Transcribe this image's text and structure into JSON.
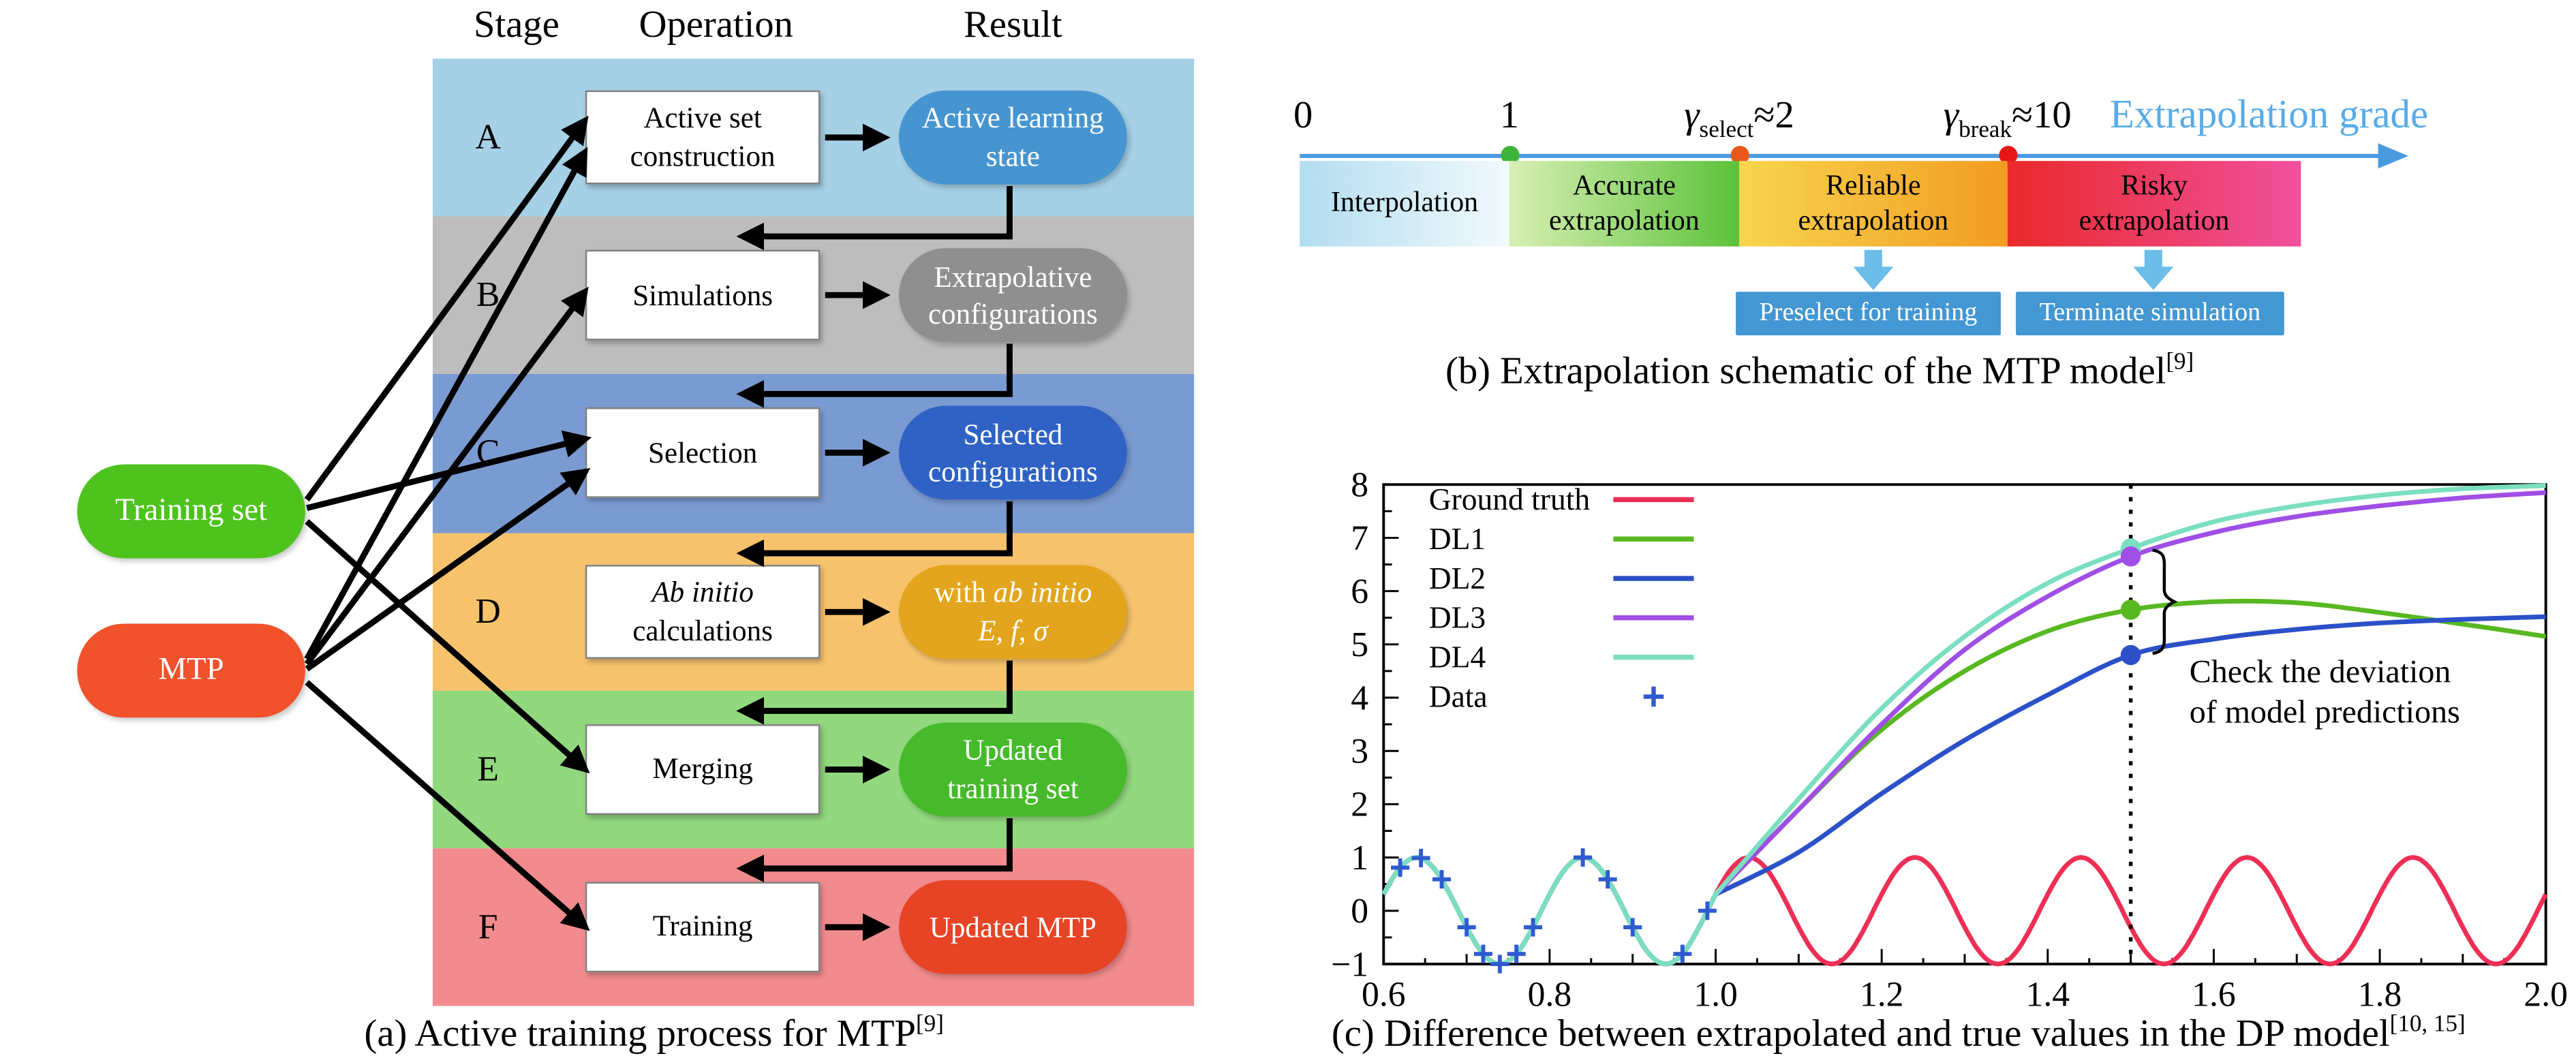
{
  "page": {
    "background": "#ffffff"
  },
  "panel_a": {
    "headers": {
      "stage": "Stage",
      "operation": "Operation",
      "result": "Result"
    },
    "left_nodes": [
      {
        "label": "Training set",
        "color": "#4ec31d"
      },
      {
        "label": "MTP",
        "color": "#f1512b"
      }
    ],
    "stages": [
      {
        "stage": "A",
        "band_color": "#a5d0e6",
        "op_lines": [
          [
            {
              "t": "Active set"
            }
          ],
          [
            {
              "t": "construction"
            }
          ]
        ],
        "res_lines": [
          [
            {
              "t": "Active learning"
            }
          ],
          [
            {
              "t": "state"
            }
          ]
        ],
        "result_color": "#4795d0"
      },
      {
        "stage": "B",
        "band_color": "#bdbdbd",
        "op_lines": [
          [
            {
              "t": "Simulations"
            }
          ]
        ],
        "res_lines": [
          [
            {
              "t": "Extrapolative"
            }
          ],
          [
            {
              "t": "configurations"
            }
          ]
        ],
        "result_color": "#8f8f8f"
      },
      {
        "stage": "C",
        "band_color": "#7a9bd2",
        "op_lines": [
          [
            {
              "t": "Selection"
            }
          ]
        ],
        "res_lines": [
          [
            {
              "t": "Selected"
            }
          ],
          [
            {
              "t": "configurations"
            }
          ]
        ],
        "result_color": "#2f62c4"
      },
      {
        "stage": "D",
        "band_color": "#f6c36c",
        "op_lines": [
          [
            {
              "t": "Ab initio",
              "i": true
            }
          ],
          [
            {
              "t": "calculations"
            }
          ]
        ],
        "res_lines": [
          [
            {
              "t": "with "
            },
            {
              "t": "ab initio",
              "i": true
            }
          ],
          [
            {
              "t": "E, f, σ",
              "i": true
            }
          ]
        ],
        "result_color": "#e2a51d"
      },
      {
        "stage": "E",
        "band_color": "#92d87e",
        "op_lines": [
          [
            {
              "t": "Merging"
            }
          ]
        ],
        "res_lines": [
          [
            {
              "t": "Updated"
            }
          ],
          [
            {
              "t": "training set"
            }
          ]
        ],
        "result_color": "#46ba2b"
      },
      {
        "stage": "F",
        "band_color": "#f28b8e",
        "op_lines": [
          [
            {
              "t": "Training"
            }
          ]
        ],
        "res_lines": [
          [
            {
              "t": "Updated MTP"
            }
          ]
        ],
        "result_color": "#e74425"
      }
    ],
    "caption_runs": [
      {
        "t": "(a) Active training process for MTP"
      },
      {
        "t": "[9]",
        "sup": true
      }
    ]
  },
  "panel_b": {
    "axis_label": "Extrapolation grade",
    "axis_color": "#4a9ae0",
    "label_color": "#58abe8",
    "ticks": [
      {
        "runs": [
          {
            "t": "0"
          }
        ]
      },
      {
        "runs": [
          {
            "t": "1"
          }
        ]
      },
      {
        "runs": [
          {
            "t": "γ",
            "i": true
          },
          {
            "t": "select",
            "sub": true
          },
          {
            "t": "≈2"
          }
        ]
      },
      {
        "runs": [
          {
            "t": "γ",
            "i": true
          },
          {
            "t": "break",
            "sub": true
          },
          {
            "t": "≈10"
          }
        ]
      }
    ],
    "dots": [
      {
        "color": "#3cb43c"
      },
      {
        "color": "#e8581a"
      },
      {
        "color": "#e81717"
      }
    ],
    "segments": [
      {
        "lines": [
          "Interpolation"
        ],
        "from": "#b2ddf0",
        "to": "#f2fafd"
      },
      {
        "lines": [
          "Accurate",
          "extrapolation"
        ],
        "from": "#d8efb4",
        "to": "#5cc23a"
      },
      {
        "lines": [
          "Reliable",
          "extrapolation"
        ],
        "from": "#f8d54e",
        "to": "#f19c21"
      },
      {
        "lines": [
          "Risky",
          "extrapolation"
        ],
        "from": "#e92a2a",
        "to": "#f0509e"
      }
    ],
    "arrow_color": "#6cbde8",
    "actions": [
      {
        "label": "Preselect for training",
        "color": "#4397d2"
      },
      {
        "label": "Terminate simulation",
        "color": "#4397d2"
      }
    ],
    "caption_runs": [
      {
        "t": "(b) Extrapolation schematic of the MTP model"
      },
      {
        "t": "[9]",
        "sup": true
      }
    ]
  },
  "chart_data": {
    "type": "line",
    "title": "",
    "xlabel": "",
    "ylabel": "",
    "xlim": [
      0.6,
      2.0
    ],
    "ylim": [
      -1,
      8
    ],
    "xticks": [
      0.6,
      0.8,
      1.0,
      1.2,
      1.4,
      1.6,
      1.8,
      2.0
    ],
    "yticks": [
      -1,
      0,
      1,
      2,
      3,
      4,
      5,
      6,
      7,
      8
    ],
    "grid": false,
    "legend_position": "upper left",
    "ground_truth": {
      "name": "Ground truth",
      "color": "#ee2f55",
      "shape": "cosine",
      "amplitude": 1,
      "period": 0.2,
      "peak_x": 0.64,
      "x_range": [
        0.6,
        2.0
      ]
    },
    "series": [
      {
        "name": "DL1",
        "color": "#58b822",
        "follow_truth_until": 1.0,
        "x": [
          1.0,
          1.1,
          1.2,
          1.3,
          1.4,
          1.5,
          1.6,
          1.7,
          1.8,
          1.9,
          2.0
        ],
        "y": [
          0.31,
          1.9,
          3.4,
          4.5,
          5.25,
          5.65,
          5.8,
          5.78,
          5.6,
          5.38,
          5.15
        ]
      },
      {
        "name": "DL2",
        "color": "#2b50c8",
        "follow_truth_until": 1.0,
        "x": [
          1.0,
          1.1,
          1.2,
          1.3,
          1.4,
          1.5,
          1.6,
          1.7,
          1.8,
          1.9,
          2.0
        ],
        "y": [
          0.31,
          1.1,
          2.2,
          3.2,
          4.05,
          4.8,
          5.1,
          5.28,
          5.4,
          5.47,
          5.52
        ]
      },
      {
        "name": "DL3",
        "color": "#a04fe6",
        "follow_truth_until": 1.0,
        "x": [
          1.0,
          1.1,
          1.2,
          1.3,
          1.4,
          1.5,
          1.6,
          1.7,
          1.8,
          1.9,
          2.0
        ],
        "y": [
          0.31,
          1.9,
          3.5,
          4.9,
          5.9,
          6.65,
          7.1,
          7.4,
          7.6,
          7.75,
          7.85
        ]
      },
      {
        "name": "DL4",
        "color": "#7adfc0",
        "follow_truth_until": 1.0,
        "x": [
          1.0,
          1.1,
          1.2,
          1.3,
          1.4,
          1.5,
          1.6,
          1.7,
          1.8,
          1.9,
          2.0
        ],
        "y": [
          0.31,
          2.1,
          3.8,
          5.15,
          6.15,
          6.8,
          7.3,
          7.6,
          7.8,
          7.92,
          7.98
        ]
      }
    ],
    "data_points": {
      "name": "Data",
      "color": "#2f5ad0",
      "marker": "+",
      "x": [
        0.62,
        0.645,
        0.67,
        0.7,
        0.72,
        0.74,
        0.76,
        0.78,
        0.84,
        0.87,
        0.9,
        0.96,
        0.99
      ],
      "y": [
        0.81,
        0.99,
        0.59,
        -0.31,
        -0.81,
        -1.0,
        -0.81,
        -0.31,
        1.0,
        0.59,
        -0.31,
        -0.81,
        0.0
      ]
    },
    "deviation_line_x": 1.5,
    "deviation_dots": [
      {
        "series": "DL4",
        "y": 6.8
      },
      {
        "series": "DL3",
        "y": 6.65
      },
      {
        "series": "DL1",
        "y": 5.65
      },
      {
        "series": "DL2",
        "y": 4.8
      }
    ],
    "annotation_lines": [
      "Check the deviation",
      "of model predictions"
    ],
    "legend_items": [
      {
        "label": "Ground truth",
        "color": "#ee2f55",
        "kind": "line"
      },
      {
        "label": "DL1",
        "color": "#58b822",
        "kind": "line"
      },
      {
        "label": "DL2",
        "color": "#2b50c8",
        "kind": "line"
      },
      {
        "label": "DL3",
        "color": "#a04fe6",
        "kind": "line"
      },
      {
        "label": "DL4",
        "color": "#7adfc0",
        "kind": "line"
      },
      {
        "label": "Data",
        "color": "#2f5ad0",
        "kind": "plus"
      }
    ]
  },
  "panel_c": {
    "caption_runs": [
      {
        "t": "(c) Difference between extrapolated and true values in the DP model"
      },
      {
        "t": "[10, 15]",
        "sup": true
      }
    ]
  }
}
